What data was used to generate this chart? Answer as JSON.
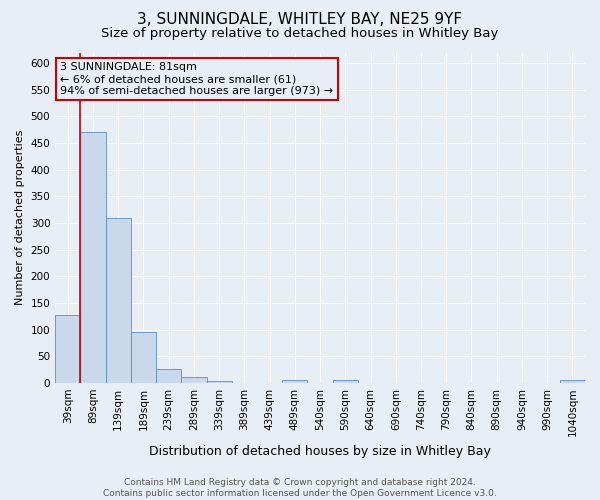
{
  "title": "3, SUNNINGDALE, WHITLEY BAY, NE25 9YF",
  "subtitle": "Size of property relative to detached houses in Whitley Bay",
  "xlabel": "Distribution of detached houses by size in Whitley Bay",
  "ylabel": "Number of detached properties",
  "footer_line1": "Contains HM Land Registry data © Crown copyright and database right 2024.",
  "footer_line2": "Contains public sector information licensed under the Open Government Licence v3.0.",
  "bar_labels": [
    "39sqm",
    "89sqm",
    "139sqm",
    "189sqm",
    "239sqm",
    "289sqm",
    "339sqm",
    "389sqm",
    "439sqm",
    "489sqm",
    "540sqm",
    "590sqm",
    "640sqm",
    "690sqm",
    "740sqm",
    "790sqm",
    "840sqm",
    "890sqm",
    "940sqm",
    "990sqm",
    "1040sqm"
  ],
  "bar_values": [
    128,
    470,
    310,
    96,
    25,
    10,
    4,
    0,
    0,
    5,
    0,
    5,
    0,
    0,
    0,
    0,
    0,
    0,
    0,
    0,
    5
  ],
  "bar_color": "#c9d9eb",
  "bar_edge_color": "#5b8ec4",
  "annotation_box_text": "3 SUNNINGDALE: 81sqm\n← 6% of detached houses are smaller (61)\n94% of semi-detached houses are larger (973) →",
  "annotation_box_edge_color": "#cc0000",
  "ylim": [
    0,
    620
  ],
  "yticks": [
    0,
    50,
    100,
    150,
    200,
    250,
    300,
    350,
    400,
    450,
    500,
    550,
    600
  ],
  "bg_color": "#e8eef5",
  "title_fontsize": 11,
  "subtitle_fontsize": 9.5,
  "xlabel_fontsize": 9,
  "ylabel_fontsize": 8,
  "tick_fontsize": 7.5,
  "annotation_fontsize": 8,
  "footer_fontsize": 6.5
}
